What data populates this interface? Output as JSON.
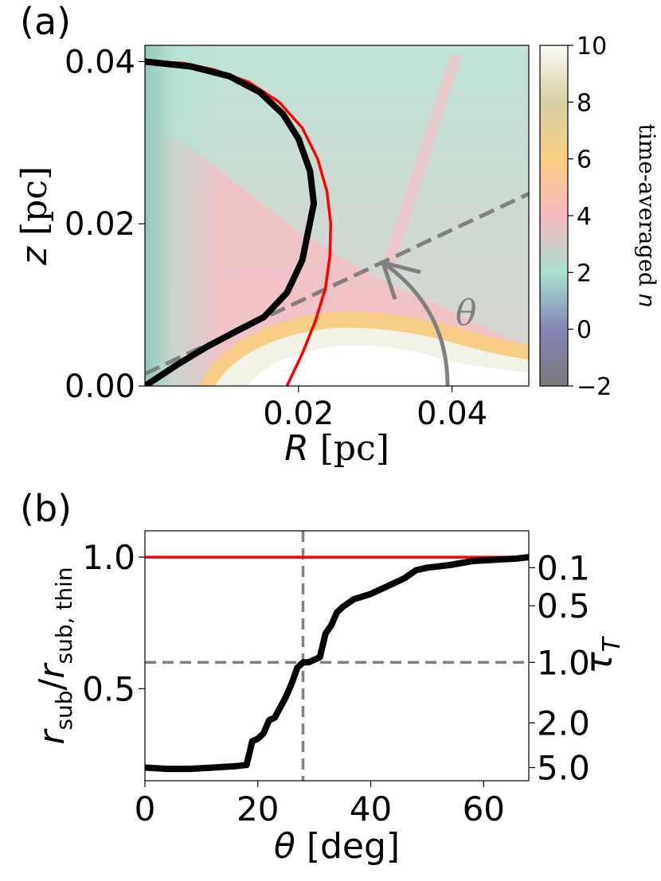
{
  "colors": {
    "red": "#ff0000",
    "black": "#000000",
    "gray": "#808080"
  },
  "chart_data": [
    {
      "panel_label": "(a)",
      "type": "heatmap",
      "xlabel_italic": "R",
      "xlabel_unit": "[pc]",
      "ylabel_italic": "z",
      "ylabel_unit": "[pc]",
      "xlim": [
        0.0,
        0.05
      ],
      "ylim": [
        0.0,
        0.042
      ],
      "xticks": [
        0.02,
        0.04
      ],
      "xtick_labels": [
        "0.02",
        "0.04"
      ],
      "yticks": [
        0.0,
        0.02,
        0.04
      ],
      "ytick_labels": [
        "0.00",
        "0.02",
        "0.04"
      ],
      "colorbar": {
        "label_text": "time-averaged",
        "label_italic": "n",
        "range": [
          -2,
          10
        ],
        "ticks": [
          -2,
          0,
          2,
          4,
          6,
          8,
          10
        ],
        "tick_labels": [
          "−2",
          "0",
          "2",
          "4",
          "6",
          "8",
          "10"
        ],
        "stops": [
          {
            "value": -2,
            "color": "#7a7a7a"
          },
          {
            "value": 0,
            "color": "#8585b6"
          },
          {
            "value": 2,
            "color": "#a9e0cf"
          },
          {
            "value": 4,
            "color": "#f7b8c0"
          },
          {
            "value": 6,
            "color": "#f9cf82"
          },
          {
            "value": 8,
            "color": "#d6cfa4"
          },
          {
            "value": 10,
            "color": "#fbfbf7"
          }
        ]
      },
      "annotation_symbol": "θ",
      "series": [
        {
          "name": "black boundary",
          "color": "#000000",
          "x": [
            0.0,
            0.004,
            0.008,
            0.012,
            0.0155,
            0.0185,
            0.0205,
            0.022,
            0.0215,
            0.02,
            0.018,
            0.015,
            0.011,
            0.006,
            0.0
          ],
          "y": [
            0.0,
            0.0025,
            0.0048,
            0.0068,
            0.0085,
            0.0115,
            0.0155,
            0.0225,
            0.0265,
            0.0305,
            0.0335,
            0.0362,
            0.0382,
            0.0394,
            0.04
          ]
        },
        {
          "name": "red optically thin boundary",
          "color": "#ff0000",
          "x": [
            0.0185,
            0.0205,
            0.0222,
            0.0235,
            0.0241,
            0.0242,
            0.0237,
            0.0225,
            0.0205,
            0.0175,
            0.0135,
            0.009,
            0.005,
            0.0
          ],
          "y": [
            0.0,
            0.004,
            0.008,
            0.012,
            0.016,
            0.02,
            0.024,
            0.028,
            0.0318,
            0.035,
            0.0375,
            0.039,
            0.0398,
            0.04
          ]
        },
        {
          "name": "dashed gray sightline",
          "color": "#808080",
          "x": [
            0.0,
            0.05
          ],
          "y": [
            0.0015,
            0.0237
          ]
        }
      ]
    },
    {
      "panel_label": "(b)",
      "type": "line",
      "xlabel_symbol": "θ",
      "xlabel_unit": "[deg]",
      "ylabel_main": "r",
      "ylabel_sub1": "sub",
      "ylabel_sub2": "sub, thin",
      "ylabel_right_main": "τ",
      "ylabel_right_sub": "T",
      "xlim": [
        0,
        68
      ],
      "ylim": [
        0.15,
        1.1
      ],
      "xticks": [
        0,
        20,
        40,
        60
      ],
      "xtick_labels": [
        "0",
        "20",
        "40",
        "60"
      ],
      "yticks": [
        0.5,
        1.0
      ],
      "ytick_labels": [
        "0.5",
        "1.0"
      ],
      "right_ticks_y": [
        0.96,
        0.815,
        0.6,
        0.37,
        0.2
      ],
      "right_tick_labels": [
        "0.1",
        "0.5",
        "1.0",
        "2.0",
        "5.0"
      ],
      "vline_x": 28,
      "hline_y": 0.6,
      "series": [
        {
          "name": "r_sub/r_sub,thin",
          "color": "#000000",
          "x": [
            0,
            4,
            8,
            12,
            16,
            18,
            19,
            20,
            21,
            22,
            23,
            24,
            25,
            26,
            27,
            28,
            29,
            30,
            31,
            32,
            33,
            34,
            35,
            37,
            40,
            42,
            44,
            46,
            48,
            50,
            54,
            58,
            62,
            66,
            68
          ],
          "y": [
            0.2,
            0.195,
            0.195,
            0.2,
            0.205,
            0.21,
            0.3,
            0.31,
            0.33,
            0.38,
            0.39,
            0.43,
            0.47,
            0.52,
            0.58,
            0.6,
            0.6,
            0.61,
            0.62,
            0.71,
            0.74,
            0.79,
            0.81,
            0.84,
            0.86,
            0.88,
            0.9,
            0.92,
            0.95,
            0.96,
            0.97,
            0.985,
            0.99,
            0.995,
            1.0
          ]
        },
        {
          "name": "optically thin reference",
          "color": "#ff0000",
          "x": [
            0,
            68
          ],
          "y": [
            1.0,
            1.0
          ]
        }
      ]
    }
  ]
}
